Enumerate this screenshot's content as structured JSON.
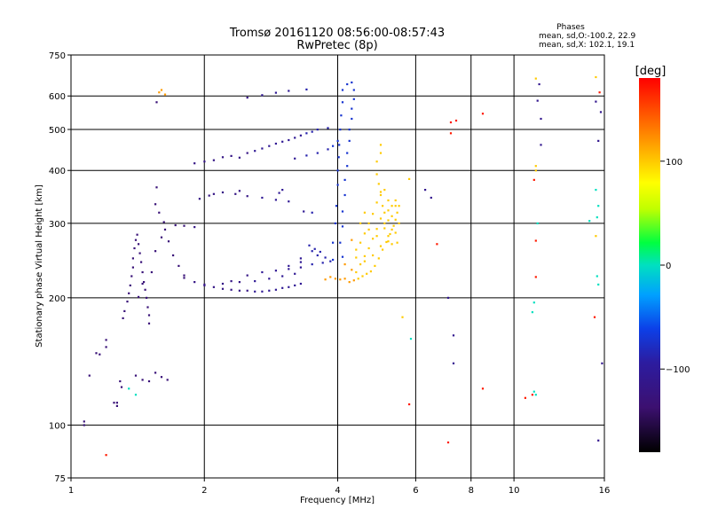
{
  "chart_data": {
    "type": "scatter",
    "title": "Tromsø 20161120 08:56:00-08:57:43",
    "subtitle": "RwPretec (8p)",
    "xlabel": "Frequency [MHz]",
    "ylabel": "Stationary phase Virtual Height [km]",
    "x_scale": "log",
    "y_scale": "log",
    "xlim": [
      1,
      16
    ],
    "ylim": [
      75,
      750
    ],
    "x_ticks": [
      1,
      2,
      4,
      6,
      8,
      10,
      16
    ],
    "x_tick_labels": [
      "1",
      "2",
      "4",
      "6",
      "8",
      "10",
      "16"
    ],
    "y_ticks": [
      75,
      100,
      200,
      300,
      400,
      500,
      600,
      750
    ],
    "y_tick_labels": [
      "75",
      "100",
      "200",
      "300",
      "400",
      "500",
      "600",
      "750"
    ],
    "grid": true,
    "phases": {
      "heading": "Phases",
      "line1": "mean, sd,O:-100.2, 22.9",
      "line2": "mean, sd,X: 102.1, 19.1"
    },
    "colorbar": {
      "label": "[deg]",
      "range": [
        -180,
        180
      ],
      "ticks": [
        100,
        0,
        -100
      ],
      "tick_labels": [
        "100",
        "0",
        "−100"
      ]
    },
    "series": [
      {
        "phase_deg": -100,
        "points": [
          [
            1.07,
            102
          ],
          [
            1.07,
            100
          ],
          [
            1.1,
            131
          ],
          [
            1.14,
            148
          ],
          [
            1.16,
            147
          ],
          [
            1.2,
            159
          ],
          [
            1.2,
            153
          ],
          [
            1.25,
            113
          ],
          [
            1.27,
            111
          ],
          [
            1.27,
            113
          ],
          [
            1.29,
            127
          ],
          [
            1.3,
            123
          ],
          [
            1.31,
            179
          ],
          [
            1.32,
            186
          ],
          [
            1.34,
            196
          ],
          [
            1.35,
            205
          ],
          [
            1.36,
            214
          ],
          [
            1.37,
            225
          ],
          [
            1.38,
            236
          ],
          [
            1.38,
            248
          ],
          [
            1.39,
            262
          ],
          [
            1.4,
            274
          ],
          [
            1.41,
            282
          ],
          [
            1.42,
            268
          ],
          [
            1.43,
            255
          ],
          [
            1.44,
            243
          ],
          [
            1.45,
            230
          ],
          [
            1.46,
            218
          ],
          [
            1.47,
            209
          ],
          [
            1.48,
            200
          ],
          [
            1.49,
            190
          ],
          [
            1.5,
            182
          ],
          [
            1.5,
            174
          ],
          [
            1.4,
            131
          ],
          [
            1.45,
            128
          ],
          [
            1.5,
            127
          ],
          [
            1.55,
            133
          ],
          [
            1.6,
            130
          ],
          [
            1.65,
            128
          ],
          [
            1.42,
            201
          ],
          [
            1.45,
            216
          ],
          [
            1.52,
            230
          ],
          [
            1.55,
            258
          ],
          [
            1.6,
            278
          ],
          [
            1.63,
            290
          ],
          [
            1.66,
            272
          ],
          [
            1.7,
            252
          ],
          [
            1.75,
            238
          ],
          [
            1.8,
            226
          ],
          [
            1.9,
            218
          ],
          [
            2.0,
            214
          ],
          [
            2.1,
            212
          ],
          [
            2.2,
            210
          ],
          [
            2.3,
            209
          ],
          [
            2.4,
            208
          ],
          [
            2.5,
            208
          ],
          [
            2.6,
            207
          ],
          [
            2.7,
            207
          ],
          [
            2.8,
            208
          ],
          [
            2.9,
            209
          ],
          [
            3.0,
            211
          ],
          [
            3.1,
            212
          ],
          [
            3.2,
            214
          ],
          [
            3.3,
            216
          ],
          [
            1.55,
            333
          ],
          [
            1.58,
            318
          ],
          [
            1.62,
            302
          ],
          [
            1.72,
            297
          ],
          [
            1.8,
            296
          ],
          [
            1.9,
            294
          ],
          [
            1.56,
            365
          ],
          [
            1.95,
            343
          ],
          [
            2.05,
            349
          ],
          [
            2.2,
            355
          ],
          [
            2.35,
            352
          ],
          [
            2.5,
            348
          ],
          [
            2.7,
            345
          ],
          [
            2.9,
            341
          ],
          [
            3.1,
            338
          ],
          [
            1.9,
            416
          ],
          [
            2.0,
            420
          ],
          [
            2.1,
            423
          ],
          [
            2.2,
            430
          ],
          [
            2.3,
            433
          ],
          [
            2.4,
            429
          ],
          [
            2.5,
            440
          ],
          [
            2.6,
            445
          ],
          [
            2.7,
            451
          ],
          [
            2.8,
            457
          ],
          [
            2.9,
            463
          ],
          [
            3.0,
            468
          ],
          [
            3.1,
            472
          ],
          [
            3.2,
            478
          ],
          [
            3.3,
            484
          ],
          [
            3.4,
            490
          ],
          [
            3.5,
            494
          ],
          [
            3.6,
            500
          ],
          [
            3.8,
            504
          ],
          [
            3.2,
            427
          ],
          [
            3.4,
            434
          ],
          [
            3.6,
            440
          ],
          [
            3.8,
            449
          ],
          [
            3.9,
            457
          ],
          [
            4.0,
            470
          ],
          [
            2.5,
            595
          ],
          [
            2.7,
            603
          ],
          [
            2.9,
            611
          ],
          [
            3.1,
            617
          ],
          [
            3.4,
            622
          ],
          [
            1.56,
            580
          ],
          [
            3.55,
            261
          ],
          [
            3.65,
            257
          ],
          [
            3.75,
            249
          ],
          [
            3.85,
            244
          ],
          [
            3.9,
            270
          ],
          [
            3.95,
            300
          ],
          [
            3.97,
            330
          ],
          [
            4.0,
            370
          ],
          [
            4.0,
            400
          ],
          [
            4.02,
            430
          ],
          [
            4.03,
            460
          ],
          [
            4.05,
            500
          ],
          [
            4.07,
            540
          ],
          [
            4.1,
            580
          ],
          [
            4.1,
            620
          ],
          [
            4.2,
            640
          ],
          [
            4.3,
            646
          ],
          [
            4.35,
            620
          ],
          [
            4.35,
            590
          ],
          [
            4.3,
            560
          ],
          [
            4.3,
            530
          ],
          [
            4.25,
            500
          ],
          [
            4.25,
            470
          ],
          [
            4.2,
            440
          ],
          [
            4.2,
            410
          ],
          [
            4.15,
            380
          ],
          [
            4.15,
            350
          ],
          [
            4.1,
            320
          ],
          [
            4.1,
            295
          ],
          [
            4.05,
            270
          ],
          [
            3.5,
            258
          ],
          [
            3.45,
            266
          ],
          [
            3.3,
            248
          ],
          [
            3.1,
            238
          ],
          [
            3.2,
            228
          ],
          [
            3.0,
            225
          ],
          [
            2.8,
            222
          ],
          [
            2.6,
            219
          ],
          [
            2.4,
            218
          ],
          [
            2.2,
            216
          ],
          [
            2.0,
            215
          ],
          [
            1.8,
            223
          ],
          [
            2.3,
            219
          ],
          [
            2.5,
            226
          ],
          [
            2.7,
            230
          ],
          [
            2.9,
            232
          ],
          [
            3.1,
            234
          ],
          [
            3.3,
            236
          ],
          [
            3.5,
            240
          ],
          [
            3.7,
            242
          ],
          [
            3.9,
            246
          ],
          [
            4.1,
            250
          ],
          [
            2.95,
            354
          ],
          [
            3.0,
            360
          ],
          [
            3.35,
            320
          ],
          [
            3.5,
            318
          ],
          [
            2.1,
            352
          ],
          [
            2.4,
            358
          ],
          [
            3.3,
            243
          ],
          [
            3.6,
            252
          ]
        ]
      },
      {
        "phase_deg": 100,
        "points": [
          [
            4.15,
            240
          ],
          [
            4.3,
            233
          ],
          [
            4.4,
            230
          ],
          [
            4.5,
            240
          ],
          [
            4.6,
            251
          ],
          [
            4.7,
            262
          ],
          [
            4.8,
            276
          ],
          [
            4.9,
            291
          ],
          [
            5.0,
            308
          ],
          [
            5.05,
            330
          ],
          [
            5.0,
            350
          ],
          [
            4.95,
            372
          ],
          [
            4.9,
            392
          ],
          [
            5.1,
            318
          ],
          [
            5.2,
            305
          ],
          [
            5.3,
            312
          ],
          [
            5.4,
            306
          ],
          [
            5.45,
            318
          ],
          [
            5.35,
            296
          ],
          [
            5.25,
            283
          ],
          [
            5.15,
            271
          ],
          [
            5.05,
            260
          ],
          [
            4.95,
            248
          ],
          [
            4.85,
            238
          ],
          [
            4.75,
            231
          ],
          [
            4.65,
            228
          ],
          [
            4.55,
            225
          ],
          [
            4.45,
            222
          ],
          [
            4.35,
            220
          ],
          [
            4.25,
            218
          ],
          [
            4.15,
            222
          ],
          [
            4.05,
            221
          ],
          [
            3.95,
            222
          ],
          [
            3.85,
            224
          ],
          [
            3.75,
            221
          ],
          [
            4.4,
            260
          ],
          [
            4.5,
            270
          ],
          [
            4.6,
            284
          ],
          [
            4.7,
            300
          ],
          [
            4.8,
            316
          ],
          [
            4.9,
            336
          ],
          [
            5.0,
            356
          ],
          [
            5.1,
            292
          ],
          [
            5.2,
            280
          ],
          [
            5.3,
            268
          ],
          [
            5.3,
            290
          ],
          [
            5.2,
            340
          ],
          [
            5.1,
            360
          ],
          [
            5.0,
            440
          ],
          [
            5.0,
            460
          ],
          [
            4.9,
            420
          ],
          [
            4.4,
            249
          ],
          [
            4.6,
            244
          ],
          [
            4.8,
            252
          ],
          [
            5.0,
            265
          ],
          [
            5.2,
            272
          ],
          [
            5.4,
            285
          ],
          [
            5.5,
            300
          ],
          [
            5.5,
            330
          ],
          [
            5.4,
            340
          ],
          [
            5.3,
            330
          ],
          [
            4.7,
            290
          ],
          [
            4.9,
            280
          ],
          [
            5.1,
            300
          ],
          [
            5.2,
            322
          ],
          [
            4.3,
            274
          ],
          [
            4.5,
            300
          ],
          [
            4.6,
            318
          ],
          [
            5.4,
            330
          ],
          [
            5.45,
            270
          ],
          [
            1.58,
            612
          ],
          [
            1.6,
            620
          ],
          [
            1.63,
            605
          ],
          [
            11.2,
            660
          ],
          [
            11.2,
            410
          ],
          [
            11.2,
            400
          ],
          [
            15.3,
            665
          ],
          [
            15.3,
            280
          ],
          [
            5.8,
            382
          ],
          [
            5.6,
            180
          ]
        ]
      },
      {
        "phase_deg": -110,
        "points": [
          [
            6.3,
            360
          ],
          [
            6.5,
            345
          ],
          [
            7.1,
            200
          ],
          [
            7.3,
            163
          ],
          [
            7.3,
            140
          ],
          [
            11.4,
            640
          ],
          [
            11.3,
            585
          ],
          [
            11.5,
            530
          ],
          [
            11.5,
            460
          ],
          [
            15.3,
            582
          ],
          [
            15.7,
            550
          ],
          [
            15.5,
            470
          ],
          [
            15.8,
            140
          ],
          [
            15.5,
            92
          ]
        ]
      },
      {
        "phase_deg": 0,
        "points": [
          [
            5.85,
            160
          ],
          [
            11.1,
            195
          ],
          [
            11.0,
            185
          ],
          [
            11.1,
            120
          ],
          [
            11.2,
            118
          ],
          [
            11.3,
            300
          ],
          [
            15.3,
            360
          ],
          [
            15.5,
            330
          ],
          [
            15.4,
            310
          ],
          [
            15.4,
            225
          ],
          [
            15.5,
            215
          ],
          [
            14.8,
            304
          ],
          [
            1.35,
            122
          ],
          [
            1.4,
            118
          ]
        ]
      },
      {
        "phase_deg": 170,
        "points": [
          [
            6.7,
            268
          ],
          [
            7.2,
            520
          ],
          [
            7.4,
            525
          ],
          [
            7.2,
            490
          ],
          [
            7.1,
            91
          ],
          [
            8.5,
            122
          ],
          [
            8.5,
            545
          ],
          [
            10.6,
            116
          ],
          [
            11.0,
            118
          ],
          [
            11.2,
            224
          ],
          [
            11.2,
            273
          ],
          [
            11.1,
            380
          ],
          [
            15.6,
            612
          ],
          [
            15.2,
            180
          ],
          [
            5.8,
            112
          ],
          [
            1.2,
            85
          ]
        ]
      }
    ]
  }
}
